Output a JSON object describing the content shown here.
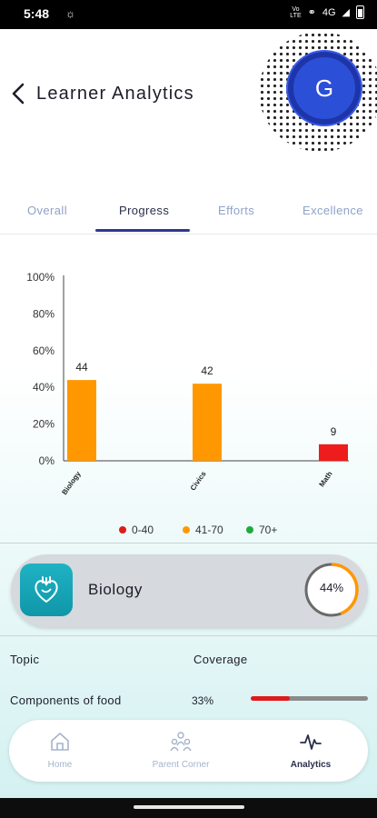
{
  "status_bar": {
    "time": "5:48",
    "network": "4G"
  },
  "header": {
    "title": "Learner Analytics",
    "avatar_initial": "G"
  },
  "tabs": [
    {
      "label": "Overall",
      "active": false
    },
    {
      "label": "Progress",
      "active": true
    },
    {
      "label": "Efforts",
      "active": false
    },
    {
      "label": "Excellence",
      "active": false
    }
  ],
  "chart_data": {
    "type": "bar",
    "categories": [
      "Biology",
      "Civics",
      "Math"
    ],
    "values": [
      44,
      42,
      9
    ],
    "colors": [
      "#ff9800",
      "#ff9800",
      "#ee1c1c"
    ],
    "y_ticks": [
      "0%",
      "20%",
      "40%",
      "60%",
      "80%",
      "100%"
    ],
    "ylim": [
      0,
      100
    ],
    "grid": false
  },
  "legend": [
    {
      "label": "0-40",
      "color": "#e01b1b"
    },
    {
      "label": "41-70",
      "color": "#ff9800"
    },
    {
      "label": "70+",
      "color": "#1faa3c"
    }
  ],
  "subject_card": {
    "name": "Biology",
    "percent_label": "44%",
    "percent": 44,
    "ring_color": "#ff9800"
  },
  "topics_table": {
    "headers": {
      "topic": "Topic",
      "coverage": "Coverage"
    },
    "rows": [
      {
        "topic": "Components of food",
        "coverage_label": "33%",
        "coverage": 33
      }
    ]
  },
  "bottom_nav": [
    {
      "label": "Home",
      "icon": "home-icon",
      "active": false
    },
    {
      "label": "Parent Corner",
      "icon": "parent-corner-icon",
      "active": false
    },
    {
      "label": "Analytics",
      "icon": "analytics-icon",
      "active": true
    }
  ]
}
